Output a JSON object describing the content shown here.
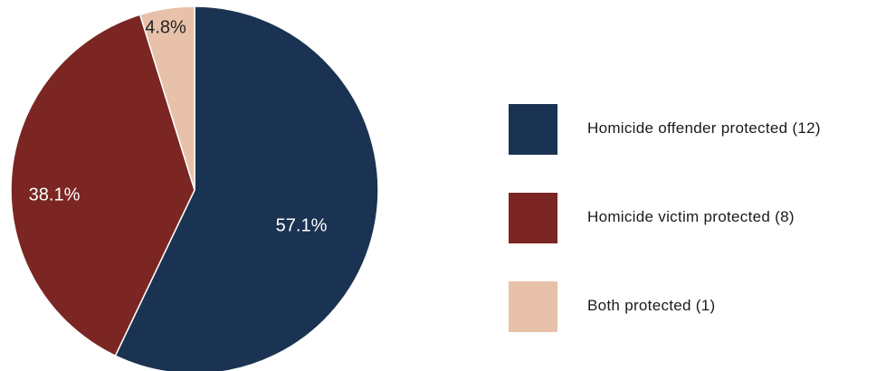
{
  "chart_data": {
    "type": "pie",
    "title": "",
    "start_angle_deg": 0,
    "direction": "clockwise",
    "legend_position": "right",
    "slices": [
      {
        "label": "Homicide offender protected (12)",
        "value": 57.1,
        "display": "57.1%",
        "color": "#1b3352",
        "text_color": "#ffffff"
      },
      {
        "label": "Homicide victim protected (8)",
        "value": 38.1,
        "display": "38.1%",
        "color": "#7b2622",
        "text_color": "#ffffff"
      },
      {
        "label": "Both protected (1)",
        "value": 4.8,
        "display": "4.8%",
        "color": "#e8c1aa",
        "text_color": "#222222"
      }
    ]
  }
}
